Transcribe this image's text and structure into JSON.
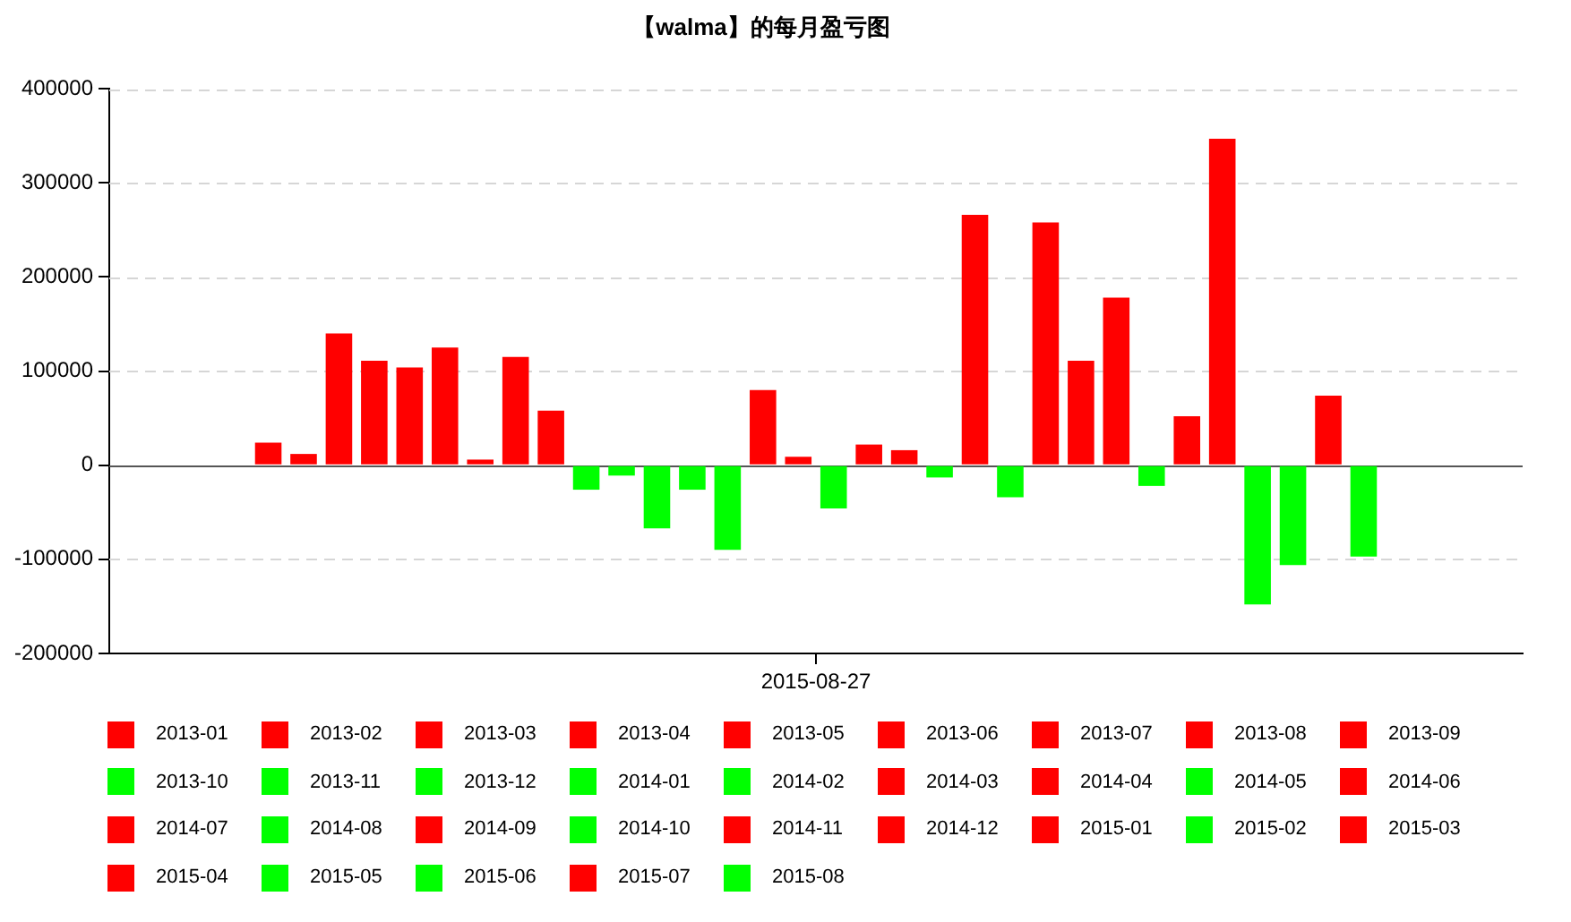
{
  "chart_data": {
    "type": "bar",
    "title": "【walma】的每月盈亏图",
    "categories": [
      "2015-08-27"
    ],
    "series": [
      {
        "name": "2013-01",
        "color": "#ff0000",
        "values": [
          24000
        ]
      },
      {
        "name": "2013-02",
        "color": "#ff0000",
        "values": [
          12000
        ]
      },
      {
        "name": "2013-03",
        "color": "#ff0000",
        "values": [
          140000
        ]
      },
      {
        "name": "2013-04",
        "color": "#ff0000",
        "values": [
          111000
        ]
      },
      {
        "name": "2013-05",
        "color": "#ff0000",
        "values": [
          104000
        ]
      },
      {
        "name": "2013-06",
        "color": "#ff0000",
        "values": [
          125000
        ]
      },
      {
        "name": "2013-07",
        "color": "#ff0000",
        "values": [
          6000
        ]
      },
      {
        "name": "2013-08",
        "color": "#ff0000",
        "values": [
          115000
        ]
      },
      {
        "name": "2013-09",
        "color": "#ff0000",
        "values": [
          58000
        ]
      },
      {
        "name": "2013-10",
        "color": "#00ff00",
        "values": [
          -26000
        ]
      },
      {
        "name": "2013-11",
        "color": "#00ff00",
        "values": [
          -11000
        ]
      },
      {
        "name": "2013-12",
        "color": "#00ff00",
        "values": [
          -67000
        ]
      },
      {
        "name": "2014-01",
        "color": "#00ff00",
        "values": [
          -26000
        ]
      },
      {
        "name": "2014-02",
        "color": "#00ff00",
        "values": [
          -90000
        ]
      },
      {
        "name": "2014-03",
        "color": "#ff0000",
        "values": [
          80000
        ]
      },
      {
        "name": "2014-04",
        "color": "#ff0000",
        "values": [
          9000
        ]
      },
      {
        "name": "2014-05",
        "color": "#00ff00",
        "values": [
          -46000
        ]
      },
      {
        "name": "2014-06",
        "color": "#ff0000",
        "values": [
          22000
        ]
      },
      {
        "name": "2014-07",
        "color": "#ff0000",
        "values": [
          16000
        ]
      },
      {
        "name": "2014-08",
        "color": "#00ff00",
        "values": [
          -13000
        ]
      },
      {
        "name": "2014-09",
        "color": "#ff0000",
        "values": [
          266000
        ]
      },
      {
        "name": "2014-10",
        "color": "#00ff00",
        "values": [
          -34000
        ]
      },
      {
        "name": "2014-11",
        "color": "#ff0000",
        "values": [
          258000
        ]
      },
      {
        "name": "2014-12",
        "color": "#ff0000",
        "values": [
          111000
        ]
      },
      {
        "name": "2015-01",
        "color": "#ff0000",
        "values": [
          178000
        ]
      },
      {
        "name": "2015-02",
        "color": "#00ff00",
        "values": [
          -22000
        ]
      },
      {
        "name": "2015-03",
        "color": "#ff0000",
        "values": [
          52000
        ]
      },
      {
        "name": "2015-04",
        "color": "#ff0000",
        "values": [
          347000
        ]
      },
      {
        "name": "2015-05",
        "color": "#00ff00",
        "values": [
          -148000
        ]
      },
      {
        "name": "2015-06",
        "color": "#00ff00",
        "values": [
          -106000
        ]
      },
      {
        "name": "2015-07",
        "color": "#ff0000",
        "values": [
          74000
        ]
      },
      {
        "name": "2015-08",
        "color": "#00ff00",
        "values": [
          -97000
        ]
      }
    ],
    "ylim": [
      -200000,
      400000
    ],
    "yticks": [
      -200000,
      -100000,
      0,
      100000,
      200000,
      300000,
      400000
    ],
    "grid": "y",
    "legend": "bottom"
  }
}
